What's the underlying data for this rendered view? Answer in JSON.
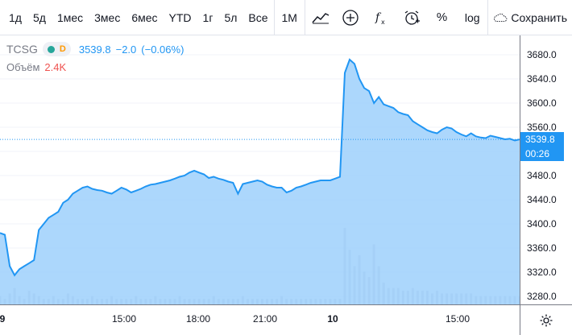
{
  "toolbar": {
    "timeframes": [
      "1д",
      "5д",
      "1мес",
      "3мес",
      "6мес",
      "YTD",
      "1г",
      "5л",
      "Все"
    ],
    "interval": "1М",
    "log_label": "log",
    "percent_label": "%",
    "save_label": "Сохранить"
  },
  "legend": {
    "symbol": "TCSG",
    "badge_letter": "D",
    "badge_dot_color": "#26a69a",
    "price": "3539.8",
    "change": "−2.0",
    "change_pct": "(−0.06%)",
    "volume_label": "Объём",
    "volume_value": "2.4K"
  },
  "price_axis": {
    "ticks": [
      "3680.0",
      "3640.0",
      "3600.0",
      "3560.0",
      "3520.0",
      "3480.0",
      "3440.0",
      "3400.0",
      "3360.0",
      "3320.0",
      "3280.0"
    ],
    "last_price": "3539.8",
    "countdown": "00:26"
  },
  "time_axis": {
    "ticks": [
      "9",
      "15:00",
      "18:00",
      "21:00",
      "10",
      "15:00"
    ]
  },
  "colors": {
    "line": "#2196f3",
    "area": "#9dd0fb",
    "volume": "#c2c6d6",
    "accent": "#2196f3"
  },
  "chart_data": {
    "type": "area",
    "ylim": [
      3280,
      3680
    ],
    "x_labels": [
      "9",
      "15:00",
      "18:00",
      "21:00",
      "10",
      "15:00"
    ],
    "series": [
      {
        "values": [
          3385,
          3382,
          3330,
          3315,
          3325,
          3330,
          3335,
          3340,
          3390,
          3400,
          3410,
          3415,
          3420,
          3435,
          3440,
          3450,
          3455,
          3460,
          3462,
          3458,
          3456,
          3455,
          3452,
          3450,
          3455,
          3460,
          3457,
          3452,
          3455,
          3458,
          3462,
          3465,
          3466,
          3468,
          3470,
          3472,
          3475,
          3478,
          3480,
          3485,
          3488,
          3485,
          3482,
          3476,
          3478,
          3475,
          3473,
          3470,
          3468,
          3450,
          3466,
          3468,
          3470,
          3472,
          3470,
          3465,
          3462,
          3460,
          3460,
          3452,
          3455,
          3460,
          3462,
          3465,
          3468,
          3470,
          3472,
          3472,
          3472,
          3475,
          3478,
          3650,
          3672,
          3665,
          3640,
          3625,
          3620,
          3600,
          3610,
          3598,
          3595,
          3592,
          3585,
          3582,
          3580,
          3570,
          3565,
          3560,
          3555,
          3552,
          3550,
          3556,
          3560,
          3558,
          3552,
          3548,
          3545,
          3550,
          3545,
          3543,
          3542,
          3546,
          3544,
          3542,
          3540,
          3541,
          3538,
          3539.8
        ]
      }
    ],
    "volume": [
      3,
      2,
      4,
      6,
      3,
      2,
      5,
      4,
      3,
      2,
      2,
      3,
      2,
      2,
      4,
      3,
      2,
      2,
      2,
      3,
      2,
      2,
      2,
      3,
      2,
      2,
      2,
      2,
      3,
      2,
      2,
      2,
      3,
      2,
      2,
      2,
      2,
      3,
      2,
      2,
      2,
      2,
      2,
      2,
      3,
      2,
      2,
      2,
      2,
      2,
      3,
      2,
      2,
      2,
      2,
      2,
      2,
      2,
      3,
      2,
      2,
      2,
      2,
      2,
      2,
      2,
      2,
      2,
      2,
      2,
      2,
      28,
      20,
      14,
      18,
      12,
      10,
      22,
      14,
      8,
      6,
      6,
      6,
      5,
      5,
      6,
      5,
      5,
      5,
      4,
      5,
      4,
      4,
      4,
      4,
      4,
      4,
      4,
      3,
      3,
      3,
      3,
      3,
      3,
      3,
      3,
      3,
      3
    ]
  }
}
